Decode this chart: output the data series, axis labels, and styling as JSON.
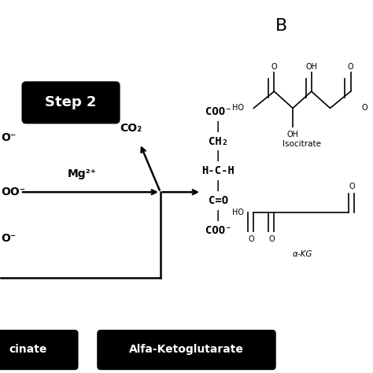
{
  "bg_color": "#ffffff",
  "step2_label": "Step 2",
  "step2_box_color": "#000000",
  "step2_text_color": "#ffffff",
  "mg_label": "Mg²⁺",
  "co2_label": "CO₂",
  "label_B": "B",
  "isocitrate_label": "Isocitrate",
  "akg_label": "α-KG",
  "alfa_ketoglutarate_label": "Alfa-Ketoglutarate",
  "alfa_box_color": "#000000",
  "alfa_text_color": "#ffffff",
  "struct_lines": [
    [
      "COO⁻",
      7.0
    ],
    [
      "|",
      6.6
    ],
    [
      "CH₂",
      6.2
    ],
    [
      "|",
      5.82
    ],
    [
      "H-C-H",
      5.42
    ],
    [
      "|",
      5.02
    ],
    [
      "C=O",
      4.62
    ],
    [
      "|",
      4.22
    ],
    [
      "COO⁻",
      3.82
    ]
  ]
}
